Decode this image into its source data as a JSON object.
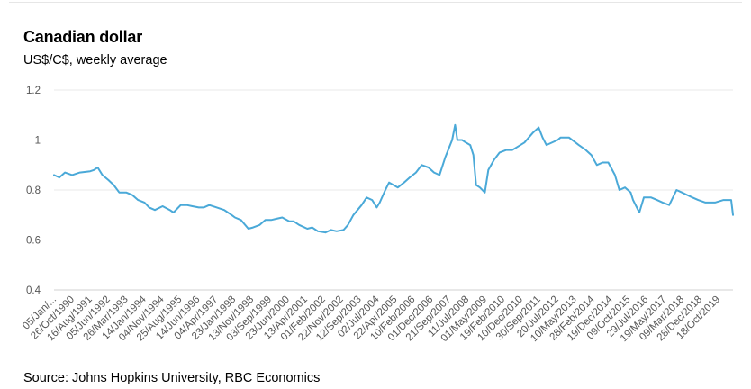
{
  "chart_data": {
    "type": "line",
    "title": "Canadian dollar",
    "subtitle": "US$/C$, weekly average",
    "source": "Source: Johns Hopkins University, RBC Economics",
    "ylim": [
      0.4,
      1.2
    ],
    "yticks": [
      0.4,
      0.6,
      0.8,
      1,
      1.2
    ],
    "ytick_labels": [
      "0.4",
      "0.6",
      "0.8",
      "1",
      "1.2"
    ],
    "grid": true,
    "x_tick_labels": [
      "05/Jan/...",
      "26/Oct/1990",
      "16/Aug/1991",
      "05/Jun/1992",
      "26/Mar/1993",
      "14/Jan/1994",
      "04/Nov/1994",
      "25/Aug/1995",
      "14/Jun/1996",
      "04/Apr/1997",
      "23/Jan/1998",
      "13/Nov/1998",
      "03/Sep/1999",
      "23/Jun/2000",
      "13/Apr/2001",
      "01/Feb/2002",
      "22/Nov/2002",
      "12/Sep/2003",
      "02/Jul/2004",
      "22/Apr/2005",
      "10/Feb/2006",
      "01/Dec/2006",
      "21/Sep/2007",
      "11/Jul/2008",
      "01/May/2009",
      "19/Feb/2010",
      "10/Dec/2010",
      "30/Sep/2011",
      "20/Jul/2012",
      "10/May/2013",
      "28/Feb/2014",
      "19/Dec/2014",
      "09/Oct/2015",
      "29/Jul/2016",
      "19/May/2017",
      "09/Mar/2018",
      "28/Dec/2018",
      "18/Oct/2019"
    ],
    "series": [
      {
        "color": "#4aa9d8",
        "x": [
          "1990-01-05",
          "1990-04-01",
          "1990-07-01",
          "1990-10-26",
          "1991-03-01",
          "1991-08-16",
          "1991-10-15",
          "1991-12-15",
          "1992-03-01",
          "1992-06-05",
          "1992-09-01",
          "1992-12-01",
          "1993-03-26",
          "1993-07-01",
          "1993-10-01",
          "1994-01-14",
          "1994-04-01",
          "1994-07-01",
          "1994-11-04",
          "1995-03-01",
          "1995-05-01",
          "1995-08-25",
          "1995-12-01",
          "1996-03-01",
          "1996-06-14",
          "1996-09-01",
          "1996-12-01",
          "1997-04-04",
          "1997-08-01",
          "1997-12-01",
          "1998-01-23",
          "1998-05-01",
          "1998-08-28",
          "1998-11-13",
          "1999-03-01",
          "1999-06-01",
          "1999-09-03",
          "1999-12-01",
          "2000-03-01",
          "2000-06-23",
          "2000-09-01",
          "2000-12-01",
          "2001-04-13",
          "2001-07-01",
          "2001-10-01",
          "2002-02-01",
          "2002-05-01",
          "2002-08-01",
          "2002-11-22",
          "2003-02-01",
          "2003-05-01",
          "2003-09-12",
          "2003-12-01",
          "2004-03-01",
          "2004-05-15",
          "2004-07-02",
          "2004-10-01",
          "2004-12-01",
          "2005-04-22",
          "2005-08-01",
          "2005-11-01",
          "2006-02-10",
          "2006-05-15",
          "2006-09-01",
          "2006-12-01",
          "2007-03-01",
          "2007-06-01",
          "2007-09-21",
          "2007-11-09",
          "2007-12-15",
          "2008-03-01",
          "2008-05-01",
          "2008-07-11",
          "2008-09-01",
          "2008-10-15",
          "2008-12-15",
          "2009-03-06",
          "2009-05-01",
          "2009-08-01",
          "2009-11-01",
          "2010-02-19",
          "2010-05-25",
          "2010-08-01",
          "2010-12-10",
          "2011-04-29",
          "2011-07-29",
          "2011-09-30",
          "2011-12-01",
          "2012-05-31",
          "2012-07-20",
          "2012-12-01",
          "2013-05-10",
          "2013-09-01",
          "2013-12-01",
          "2014-02-28",
          "2014-06-01",
          "2014-09-01",
          "2014-12-19",
          "2015-03-01",
          "2015-06-01",
          "2015-09-01",
          "2015-10-09",
          "2016-01-20",
          "2016-04-01",
          "2016-07-29",
          "2016-11-01",
          "2017-02-01",
          "2017-05-19",
          "2017-09-15",
          "2017-12-15",
          "2018-03-09",
          "2018-06-01",
          "2018-09-01",
          "2018-12-28",
          "2019-03-01",
          "2019-06-01",
          "2019-10-18",
          "2020-01-15",
          "2020-02-20",
          "2020-03-20"
        ],
        "values": [
          0.86,
          0.85,
          0.87,
          0.86,
          0.87,
          0.875,
          0.88,
          0.89,
          0.86,
          0.84,
          0.82,
          0.79,
          0.79,
          0.78,
          0.76,
          0.75,
          0.73,
          0.72,
          0.735,
          0.72,
          0.71,
          0.74,
          0.74,
          0.735,
          0.73,
          0.73,
          0.74,
          0.73,
          0.72,
          0.7,
          0.69,
          0.68,
          0.645,
          0.65,
          0.66,
          0.68,
          0.68,
          0.685,
          0.69,
          0.675,
          0.675,
          0.66,
          0.645,
          0.65,
          0.635,
          0.63,
          0.64,
          0.635,
          0.64,
          0.66,
          0.7,
          0.74,
          0.77,
          0.76,
          0.73,
          0.75,
          0.8,
          0.83,
          0.81,
          0.83,
          0.85,
          0.87,
          0.9,
          0.89,
          0.87,
          0.86,
          0.93,
          1.0,
          1.06,
          1.0,
          1.0,
          0.99,
          0.98,
          0.94,
          0.82,
          0.81,
          0.79,
          0.88,
          0.92,
          0.95,
          0.96,
          0.96,
          0.97,
          0.99,
          1.03,
          1.05,
          1.01,
          0.98,
          1.0,
          1.01,
          1.01,
          0.98,
          0.96,
          0.94,
          0.9,
          0.91,
          0.91,
          0.86,
          0.8,
          0.81,
          0.79,
          0.76,
          0.71,
          0.77,
          0.77,
          0.76,
          0.75,
          0.74,
          0.8,
          0.79,
          0.78,
          0.77,
          0.76,
          0.75,
          0.75,
          0.75,
          0.76,
          0.76,
          0.76,
          0.7
        ]
      }
    ]
  }
}
